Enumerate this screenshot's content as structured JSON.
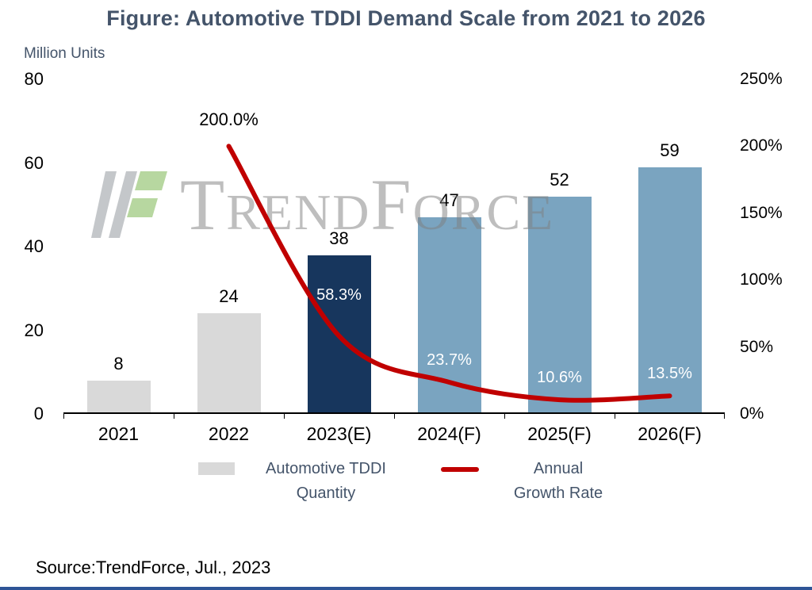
{
  "figure": {
    "title": "Figure: Automotive TDDI Demand Scale from 2021 to 2026",
    "source": "Source:TrendForce, Jul., 2023",
    "watermark_text": "TrendForce"
  },
  "chart_data": {
    "type": "combo",
    "subtype": "bar+line",
    "title": "Figure: Automotive TDDI Demand Scale from 2021 to 2026",
    "categories": [
      "2021",
      "2022",
      "2023(E)",
      "2024(F)",
      "2025(F)",
      "2026(F)"
    ],
    "left_axis": {
      "label": "Million Units",
      "min": 0,
      "max": 80,
      "ticks": [
        "80",
        "60",
        "40",
        "20",
        "0"
      ]
    },
    "right_axis": {
      "min": 0,
      "max": 250,
      "unit": "%",
      "ticks": [
        "250%",
        "200%",
        "150%",
        "100%",
        "50%",
        "0%"
      ]
    },
    "series": [
      {
        "name": "Automotive TDDI Quantity",
        "type": "bar",
        "values": [
          8,
          24,
          38,
          47,
          52,
          59
        ],
        "value_labels": [
          "8",
          "24",
          "38",
          "47",
          "52",
          "59"
        ]
      },
      {
        "name": "Annual Growth Rate",
        "type": "line",
        "values": [
          null,
          200.0,
          58.3,
          23.7,
          10.6,
          13.5
        ],
        "value_labels": [
          "",
          "200.0%",
          "58.3%",
          "23.7%",
          "10.6%",
          "13.5%"
        ]
      }
    ],
    "bar_colors": [
      "#d9d9d9",
      "#d9d9d9",
      "#17365d",
      "#7aa4c0",
      "#7aa4c0",
      "#7aa4c0"
    ],
    "colors": {
      "bar_default": "#d9d9d9",
      "bar_current": "#17365d",
      "bar_forecast": "#7aa4c0",
      "line": "#c00000",
      "title": "#44546a",
      "bottom_rule": "#2e5496"
    },
    "legend_position": "bottom",
    "grid": false
  },
  "legend": {
    "bar": {
      "line1": "Automotive TDDI",
      "line2": "Quantity"
    },
    "line": {
      "line1": "Annual",
      "line2": "Growth Rate"
    }
  }
}
